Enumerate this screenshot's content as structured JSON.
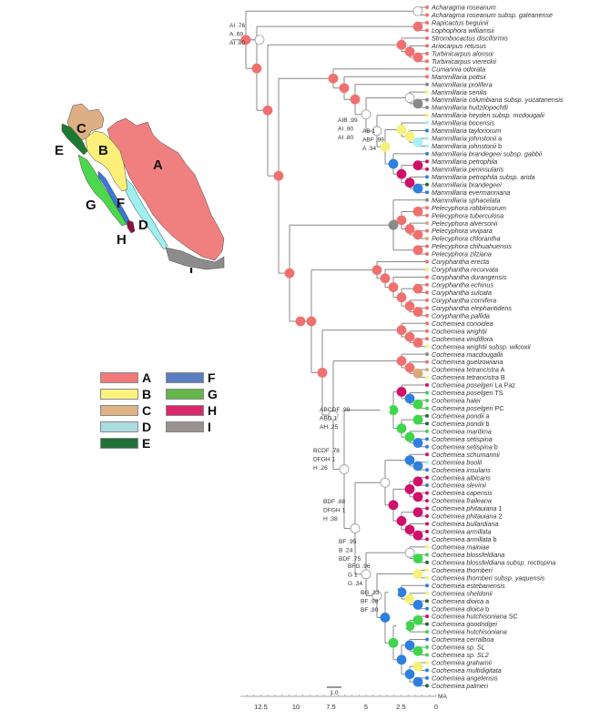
{
  "map": {
    "regions": [
      {
        "code": "A",
        "color": "#f08080"
      },
      {
        "code": "B",
        "color": "#fdf07a"
      },
      {
        "code": "C",
        "color": "#dcb084"
      },
      {
        "code": "D",
        "color": "#9ff0f0"
      },
      {
        "code": "E",
        "color": "#1e7a30"
      },
      {
        "code": "F",
        "color": "#3a78d8"
      },
      {
        "code": "G",
        "color": "#4cd84c"
      },
      {
        "code": "H",
        "color": "#8b1040"
      },
      {
        "code": "I",
        "color": "#8c8c8c"
      }
    ]
  },
  "legend": {
    "items": [
      {
        "code": "A",
        "color": "#f07a7a"
      },
      {
        "code": "B",
        "color": "#fbf27e"
      },
      {
        "code": "C",
        "color": "#dfb284"
      },
      {
        "code": "D",
        "color": "#acdde2"
      },
      {
        "code": "E",
        "color": "#22703a"
      },
      {
        "code": "F",
        "color": "#5a7fc0"
      },
      {
        "code": "G",
        "color": "#62b64a"
      },
      {
        "code": "H",
        "color": "#d9286a"
      },
      {
        "code": "I",
        "color": "#9a9290"
      }
    ]
  },
  "state_colors": {
    "A": "#f07070",
    "B": "#f4f27a",
    "C": "#d8a878",
    "D": "#a8f0f4",
    "E": "#1e6e3a",
    "F": "#2e7fe0",
    "G": "#3ed64a",
    "H": "#d0106a",
    "I": "#8a8a8a",
    "U": "#ffffff"
  },
  "tips": [
    {
      "name": "Acharagma roseanum",
      "state": "A"
    },
    {
      "name": "Acharagma roseanum subsp. galeanense",
      "state": "A"
    },
    {
      "name": "Rapicactus beguinii",
      "state": "A"
    },
    {
      "name": "Lophophora williamsii",
      "state": "A"
    },
    {
      "name": "Strombocactus disciformis",
      "state": "A"
    },
    {
      "name": "Ariocarpus retusus",
      "state": "A"
    },
    {
      "name": "Turbinicarpus alonsoi",
      "state": "A"
    },
    {
      "name": "Turbinicarpus viereckii",
      "state": "A"
    },
    {
      "name": "Cumarinia odorata",
      "state": "A"
    },
    {
      "name": "Mammillaria pottsii",
      "state": "A"
    },
    {
      "name": "Mammillaria prolifera",
      "state": "I"
    },
    {
      "name": "Mammillaria senilis",
      "state": "B"
    },
    {
      "name": "Mammillaria columbiana subsp. yucatanensis",
      "state": "I"
    },
    {
      "name": "Mammillaria huitzilopochtli",
      "state": "I"
    },
    {
      "name": "Mammillaria heyderi subsp. mcdougalii",
      "state": "B"
    },
    {
      "name": "Mammillaria bocensis",
      "state": "D"
    },
    {
      "name": "Mammillaria tayloriorum",
      "state": "F"
    },
    {
      "name": "Mammillaria johnstonii",
      "suffix": " a",
      "state": "D"
    },
    {
      "name": "Mammillaria johnstonii",
      "suffix": " b",
      "state": "D"
    },
    {
      "name": "Mammillaria brandegeei subsp. gabbii",
      "state": "F"
    },
    {
      "name": "Mammillaria petrophila",
      "state": "H"
    },
    {
      "name": "Mammillaria peninsularis",
      "state": "H"
    },
    {
      "name": "Mammillaria petrophila subsp. arida",
      "state": "F"
    },
    {
      "name": "Mammillaria brandegeei",
      "state": "E"
    },
    {
      "name": "Mammillaria evermanniana",
      "state": "F"
    },
    {
      "name": "Mammillaria sphacelata",
      "state": "I"
    },
    {
      "name": "Pelecyphora robbinsorum",
      "state": "A"
    },
    {
      "name": "Pelecyphora tuberculosa",
      "state": "A"
    },
    {
      "name": "Pelecyphora alversonii",
      "state": "C"
    },
    {
      "name": "Pelecyphora vivipara",
      "state": "A"
    },
    {
      "name": "Pelecyphora chlorantha",
      "state": "C"
    },
    {
      "name": "Pelecyphora chihuahuensis",
      "state": "A"
    },
    {
      "name": "Pelecyphora zilziana",
      "state": "A"
    },
    {
      "name": "Coryphantha erecta",
      "state": "A"
    },
    {
      "name": "Coryphantha recurvata",
      "state": "B"
    },
    {
      "name": "Coryphantha durangensis",
      "state": "A"
    },
    {
      "name": "Coryphantha echinus",
      "state": "A"
    },
    {
      "name": "Coryphantha sulcata",
      "state": "A"
    },
    {
      "name": "Coryphantha cornifera",
      "state": "A"
    },
    {
      "name": "Coryphantha elephantidens",
      "state": "A"
    },
    {
      "name": "Coryphantha pallida",
      "state": "A"
    },
    {
      "name": "Cochemiea conoidea",
      "state": "A"
    },
    {
      "name": "Cochemiea wrightii",
      "state": "A"
    },
    {
      "name": "Cochemiea viridiflora",
      "state": "A"
    },
    {
      "name": "Cochemiea wrightii subsp. wilcoxii",
      "state": "B"
    },
    {
      "name": "Cochemiea macdougallii",
      "state": "I"
    },
    {
      "name": "Cochemiea guelzowiana",
      "state": "A"
    },
    {
      "name": "Cochemiea tetrancistra",
      "suffix": " A",
      "state": "C"
    },
    {
      "name": "Cochemiea tetrancistra",
      "suffix": " B",
      "state": "B"
    },
    {
      "name": "Cochemiea poselgeri",
      "suffix": " La Paz",
      "state": "H"
    },
    {
      "name": "Cochemiea poselgeri",
      "suffix": " TS",
      "state": "G"
    },
    {
      "name": "Cochemiea halei",
      "state": "G"
    },
    {
      "name": "Cochemiea poselgeri",
      "suffix": " PC",
      "state": "G"
    },
    {
      "name": "Cochemiea pondii",
      "suffix": " a",
      "state": "E"
    },
    {
      "name": "Cochemiea pondii",
      "suffix": " b",
      "state": "E"
    },
    {
      "name": "Cochemiea maritima",
      "state": "G"
    },
    {
      "name": "Cochemiea setispina",
      "state": "F"
    },
    {
      "name": "Cochemiea setispina",
      "suffix": " b",
      "state": "F"
    },
    {
      "name": "Cochemiea schumannii",
      "state": "H"
    },
    {
      "name": "Cochemiea boolii",
      "state": "D"
    },
    {
      "name": "Cochemiea insularis",
      "state": "F"
    },
    {
      "name": "Cochemiea albicans",
      "state": "H"
    },
    {
      "name": "Cochemiea slevinii",
      "state": "F"
    },
    {
      "name": "Cochemiea capensis",
      "state": "H"
    },
    {
      "name": "Cochemiea fraileana",
      "state": "H"
    },
    {
      "name": "Cochemiea phitauiana",
      "suffix": " 1",
      "state": "H"
    },
    {
      "name": "Cochemiea phitauiana",
      "suffix": " 2",
      "state": "H"
    },
    {
      "name": "Cochemiea bullardiana",
      "state": "H"
    },
    {
      "name": "Cochemiea armillata",
      "state": "H"
    },
    {
      "name": "Cochemiea armillata",
      "suffix": " b",
      "state": "H"
    },
    {
      "name": "Cochemiea mainiae",
      "state": "B"
    },
    {
      "name": "Cochemiea blossfeldiana",
      "state": "G"
    },
    {
      "name": "Cochemiea blossfeldiana subsp. rectispina",
      "state": "E"
    },
    {
      "name": "Cochemiea thornberi",
      "state": "B"
    },
    {
      "name": "Cochemiea thornberi subsp. yaquensis",
      "state": "B"
    },
    {
      "name": "Cochemiea estebanensis",
      "state": "F"
    },
    {
      "name": "Cochemiea sheldonii",
      "state": "B"
    },
    {
      "name": "Cochemiea dioica",
      "suffix": " a",
      "state": "E"
    },
    {
      "name": "Cochemiea dioica",
      "suffix": " b",
      "state": "F"
    },
    {
      "name": "Cochemiea hutchisoniana",
      "suffix": " SC",
      "state": "H"
    },
    {
      "name": "Cochemiea goodridgei",
      "state": "E"
    },
    {
      "name": "Cochemiea hutchisoniana",
      "state": "G"
    },
    {
      "name": "Cochemiea cerralboa",
      "state": "F"
    },
    {
      "name": "Cochemiea sp. SL",
      "state": "G"
    },
    {
      "name": "Cochemiea sp. SL2",
      "state": "G"
    },
    {
      "name": "Cochemiea grahamii",
      "state": "B"
    },
    {
      "name": "Cochemiea multidigitata",
      "state": "F"
    },
    {
      "name": "Cochemiea angelensis",
      "state": "F"
    },
    {
      "name": "Cochemiea palmeri",
      "state": "E"
    }
  ],
  "annotations": [
    {
      "id": "root",
      "lines": [
        "AI .76",
        "A .69",
        "AI .80"
      ]
    },
    {
      "id": "mam1",
      "lines": [
        "AIB .99",
        "AI .90",
        "AI .80"
      ]
    },
    {
      "id": "mam2",
      "lines": [
        "AB 1",
        "ABF .99",
        "A .34"
      ]
    },
    {
      "id": "coch1",
      "lines": [
        "ABCDF .99",
        "ABD 1",
        "AH .25"
      ]
    },
    {
      "id": "coch2",
      "lines": [
        "BCDF .78",
        "DFGH 1",
        "H .26"
      ]
    },
    {
      "id": "coch3",
      "lines": [
        "BDF .88",
        "DFGH 1",
        "H .38"
      ]
    },
    {
      "id": "coch4",
      "lines": [
        "BF .95",
        "B .24",
        "BDF .75"
      ]
    },
    {
      "id": "coch5",
      "lines": [
        "BFG .96",
        "G 1",
        "G .34"
      ]
    },
    {
      "id": "coch6",
      "lines": [
        "BG .33",
        "BF .98",
        "BF .80"
      ]
    }
  ],
  "axis": {
    "unit": "MA",
    "ticks": [
      12.5,
      10,
      7.5,
      5,
      2.5,
      0
    ],
    "tick_labels": [
      "12.5",
      "10",
      "7.5",
      "5",
      "2.5",
      "0"
    ],
    "range": [
      13.7,
      0
    ],
    "scale_bar_label": "1.0"
  },
  "tree": "(((0,1)U,((2,3)A,((4,(5,(6,7)A)A)A,((8,(9,(10,((11,(12,13)I)U,(14,((15,(16,(17,18)D)B)B,(19,((20,21)H,(22,(23,24)F)H)H)F)B)U)U)A)A)A,((25,((26,27)A,(28,(29,30)A)A)A,(31,32)A)I,(((33,(34,(35,((36,37)A,(38,(39,40)A)A)A)A)A)A,((41,(42,(43,44)A)A)A,((45,(46,(47,48)C)A)A,((((49,(50,(51,52)G)F)H,((53,54)G,(55,(56,57)F)G)G)G),(((58,(59,60)F)F,(((61,62)H,(63,64)H)H,((65,66)H,(67,(68,69)H)H)H)H)U,((70,(71,72)G)U,((73,74)B,(((75,(76,(77,78)F)B)F),((((79,80)G,81)G),((82,(83,84)G)F,((85,86)B,(87,88)F)F)F)G)F)U)U)U)U)U)A)A)A)A)A)A)A)A)U;"
}
